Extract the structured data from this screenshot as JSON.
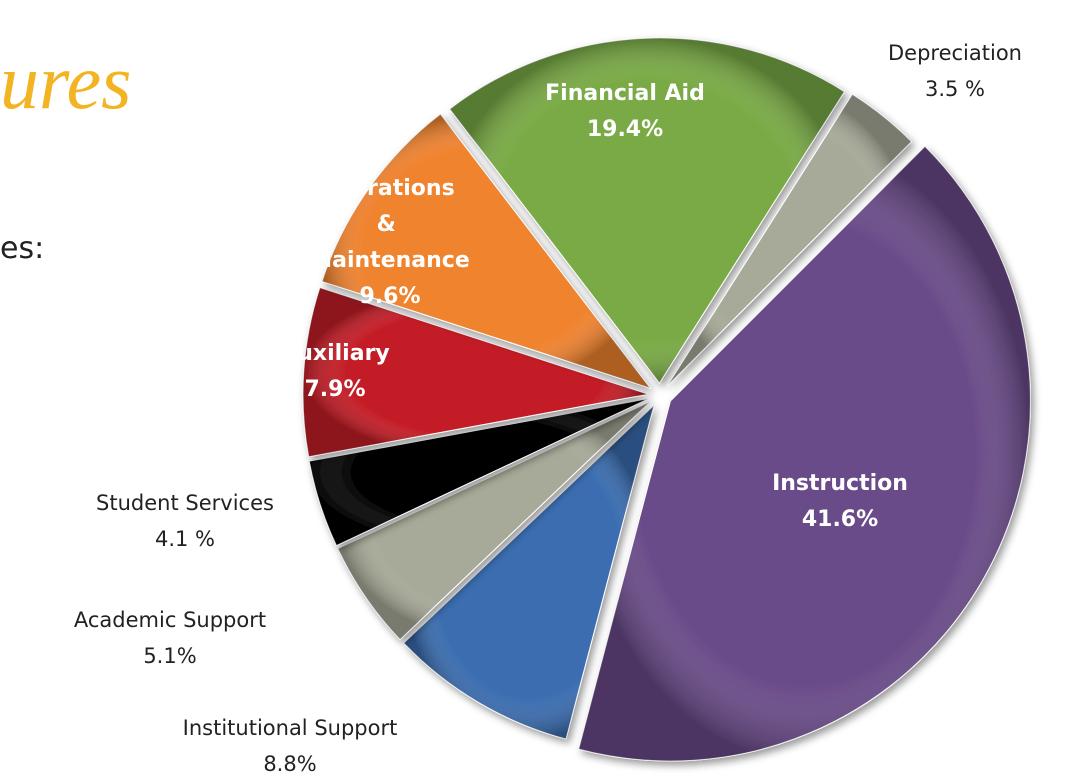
{
  "chart_data": {
    "type": "pie",
    "title": "ures",
    "subtitle": "es:",
    "categories": [
      "Instruction",
      "Institutional Support",
      "Academic Support",
      "Student Services",
      "Auxiliary",
      "Operations & Maintenance",
      "Financial Aid",
      "Depreciation"
    ],
    "values": [
      41.6,
      8.8,
      5.1,
      4.1,
      7.9,
      9.6,
      19.4,
      3.5
    ],
    "value_labels": [
      "41.6%",
      "8.8%",
      "5.1%",
      "4.1 %",
      "7.9%",
      "9.6%",
      "19.4%",
      "3.5 %"
    ],
    "colors": [
      "#6a4b89",
      "#3a6db0",
      "#a7aa98",
      "#050505",
      "#c41e27",
      "#f0832f",
      "#79aa45",
      "#a7aa98"
    ]
  }
}
